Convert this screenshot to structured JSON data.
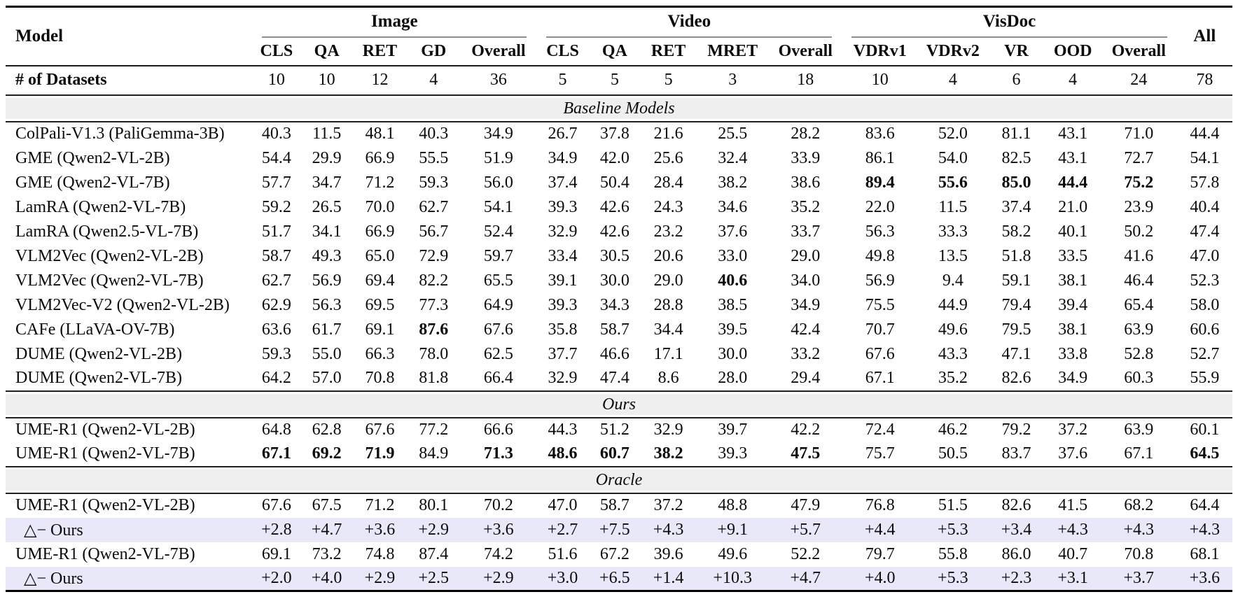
{
  "table": {
    "model_col_label": "Model",
    "all_label": "All",
    "groups": [
      {
        "label": "Image",
        "cols": [
          "CLS",
          "QA",
          "RET",
          "GD",
          "Overall"
        ]
      },
      {
        "label": "Video",
        "cols": [
          "CLS",
          "QA",
          "RET",
          "MRET",
          "Overall"
        ]
      },
      {
        "label": "VisDoc",
        "cols": [
          "VDRv1",
          "VDRv2",
          "VR",
          "OOD",
          "Overall"
        ]
      }
    ],
    "datasets_row": {
      "label": "# of Datasets",
      "values": [
        "10",
        "10",
        "12",
        "4",
        "36",
        "5",
        "5",
        "5",
        "3",
        "18",
        "10",
        "4",
        "6",
        "4",
        "24",
        "78"
      ]
    },
    "sections": [
      {
        "title": "Baseline Models",
        "rows": [
          {
            "model": "ColPali-V1.3 (PaliGemma-3B)",
            "values": [
              "40.3",
              "11.5",
              "48.1",
              "40.3",
              "34.9",
              "26.7",
              "37.8",
              "21.6",
              "25.5",
              "28.2",
              "83.6",
              "52.0",
              "81.1",
              "43.1",
              "71.0",
              "44.4"
            ]
          },
          {
            "model": "GME (Qwen2-VL-2B)",
            "values": [
              "54.4",
              "29.9",
              "66.9",
              "55.5",
              "51.9",
              "34.9",
              "42.0",
              "25.6",
              "32.4",
              "33.9",
              "86.1",
              "54.0",
              "82.5",
              "43.1",
              "72.7",
              "54.1"
            ]
          },
          {
            "model": "GME (Qwen2-VL-7B)",
            "values": [
              "57.7",
              "34.7",
              "71.2",
              "59.3",
              "56.0",
              "37.4",
              "50.4",
              "28.4",
              "38.2",
              "38.6",
              "89.4",
              "55.6",
              "85.0",
              "44.4",
              "75.2",
              "57.8"
            ],
            "bold": [
              10,
              11,
              12,
              13,
              14
            ]
          },
          {
            "model": "LamRA (Qwen2-VL-7B)",
            "values": [
              "59.2",
              "26.5",
              "70.0",
              "62.7",
              "54.1",
              "39.3",
              "42.6",
              "24.3",
              "34.6",
              "35.2",
              "22.0",
              "11.5",
              "37.4",
              "21.0",
              "23.9",
              "40.4"
            ]
          },
          {
            "model": "LamRA (Qwen2.5-VL-7B)",
            "values": [
              "51.7",
              "34.1",
              "66.9",
              "56.7",
              "52.4",
              "32.9",
              "42.6",
              "23.2",
              "37.6",
              "33.7",
              "56.3",
              "33.3",
              "58.2",
              "40.1",
              "50.2",
              "47.4"
            ]
          },
          {
            "model": "VLM2Vec (Qwen2-VL-2B)",
            "values": [
              "58.7",
              "49.3",
              "65.0",
              "72.9",
              "59.7",
              "33.4",
              "30.5",
              "20.6",
              "33.0",
              "29.0",
              "49.8",
              "13.5",
              "51.8",
              "33.5",
              "41.6",
              "47.0"
            ]
          },
          {
            "model": "VLM2Vec (Qwen2-VL-7B)",
            "values": [
              "62.7",
              "56.9",
              "69.4",
              "82.2",
              "65.5",
              "39.1",
              "30.0",
              "29.0",
              "40.6",
              "34.0",
              "56.9",
              "9.4",
              "59.1",
              "38.1",
              "46.4",
              "52.3"
            ],
            "bold": [
              8
            ]
          },
          {
            "model": "VLM2Vec-V2 (Qwen2-VL-2B)",
            "values": [
              "62.9",
              "56.3",
              "69.5",
              "77.3",
              "64.9",
              "39.3",
              "34.3",
              "28.8",
              "38.5",
              "34.9",
              "75.5",
              "44.9",
              "79.4",
              "39.4",
              "65.4",
              "58.0"
            ]
          },
          {
            "model": "CAFe (LLaVA-OV-7B)",
            "values": [
              "63.6",
              "61.7",
              "69.1",
              "87.6",
              "67.6",
              "35.8",
              "58.7",
              "34.4",
              "39.5",
              "42.4",
              "70.7",
              "49.6",
              "79.5",
              "38.1",
              "63.9",
              "60.6"
            ],
            "bold": [
              3
            ]
          },
          {
            "model": "DUME (Qwen2-VL-2B)",
            "values": [
              "59.3",
              "55.0",
              "66.3",
              "78.0",
              "62.5",
              "37.7",
              "46.6",
              "17.1",
              "30.0",
              "33.2",
              "67.6",
              "43.3",
              "47.1",
              "33.8",
              "52.8",
              "52.7"
            ]
          },
          {
            "model": "DUME (Qwen2-VL-7B)",
            "values": [
              "64.2",
              "57.0",
              "70.8",
              "81.8",
              "66.4",
              "32.9",
              "47.4",
              "8.6",
              "28.0",
              "29.4",
              "67.1",
              "35.2",
              "82.6",
              "34.9",
              "60.3",
              "55.9"
            ]
          }
        ]
      },
      {
        "title": "Ours",
        "rows": [
          {
            "model": "UME-R1 (Qwen2-VL-2B)",
            "values": [
              "64.8",
              "62.8",
              "67.6",
              "77.2",
              "66.6",
              "44.3",
              "51.2",
              "32.9",
              "39.7",
              "42.2",
              "72.4",
              "46.2",
              "79.2",
              "37.2",
              "63.9",
              "60.1"
            ]
          },
          {
            "model": "UME-R1 (Qwen2-VL-7B)",
            "values": [
              "67.1",
              "69.2",
              "71.9",
              "84.9",
              "71.3",
              "48.6",
              "60.7",
              "38.2",
              "39.3",
              "47.5",
              "75.7",
              "50.5",
              "83.7",
              "37.6",
              "67.1",
              "64.5"
            ],
            "bold": [
              0,
              1,
              2,
              4,
              5,
              6,
              7,
              9,
              15
            ]
          }
        ]
      },
      {
        "title": "Oracle",
        "rows": [
          {
            "model": "UME-R1 (Qwen2-VL-2B)",
            "values": [
              "67.6",
              "67.5",
              "71.2",
              "80.1",
              "70.2",
              "47.0",
              "58.7",
              "37.2",
              "48.8",
              "47.9",
              "76.8",
              "51.5",
              "82.6",
              "41.5",
              "68.2",
              "64.4"
            ]
          },
          {
            "model": "△− Ours",
            "highlight": true,
            "values": [
              "+2.8",
              "+4.7",
              "+3.6",
              "+2.9",
              "+3.6",
              "+2.7",
              "+7.5",
              "+4.3",
              "+9.1",
              "+5.7",
              "+4.4",
              "+5.3",
              "+3.4",
              "+4.3",
              "+4.3",
              "+4.3"
            ]
          },
          {
            "model": "UME-R1 (Qwen2-VL-7B)",
            "values": [
              "69.1",
              "73.2",
              "74.8",
              "87.4",
              "74.2",
              "51.6",
              "67.2",
              "39.6",
              "49.6",
              "52.2",
              "79.7",
              "55.8",
              "86.0",
              "40.7",
              "70.8",
              "68.1"
            ]
          },
          {
            "model": "△− Ours",
            "highlight": true,
            "values": [
              "+2.0",
              "+4.0",
              "+2.9",
              "+2.5",
              "+2.9",
              "+3.0",
              "+6.5",
              "+1.4",
              "+10.3",
              "+4.7",
              "+4.0",
              "+5.3",
              "+2.3",
              "+3.1",
              "+3.7",
              "+3.6"
            ]
          }
        ]
      }
    ],
    "colors": {
      "section_band_bg": "#efefef",
      "delta_row_bg": "#e9e8f8",
      "rule_color": "#000000",
      "group_underline_color": "#8f8f8f"
    }
  }
}
